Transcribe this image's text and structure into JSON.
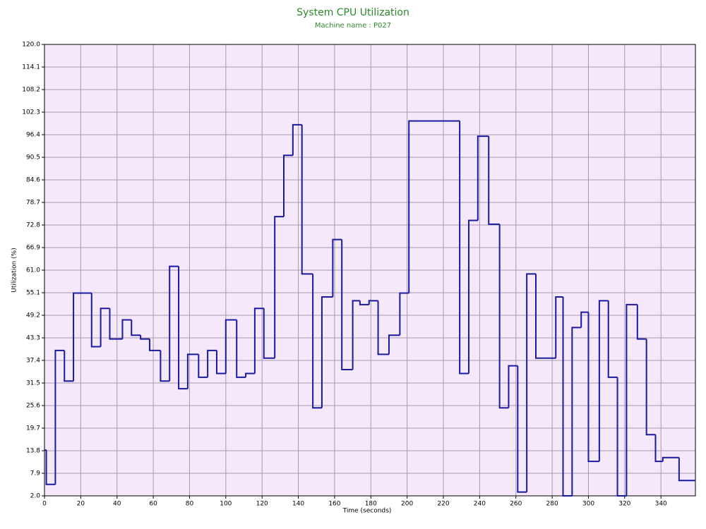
{
  "chart_data": {
    "type": "step",
    "title": "System CPU Utilization",
    "subtitle": "Machine name : P027",
    "x_label": "Time (seconds)",
    "y_label": "Utilization (%)",
    "x": [
      0,
      1,
      6,
      11,
      16,
      26,
      31,
      36,
      43,
      48,
      53,
      58,
      64,
      69,
      74,
      79,
      85,
      90,
      95,
      100,
      106,
      111,
      116,
      121,
      127,
      132,
      137,
      142,
      148,
      153,
      159,
      164,
      170,
      174,
      179,
      184,
      190,
      196,
      201,
      229,
      234,
      239,
      245,
      251,
      256,
      261,
      266,
      271,
      282,
      286,
      291,
      296,
      300,
      306,
      311,
      316,
      321,
      327,
      332,
      337,
      341,
      350,
      359
    ],
    "series": [
      {
        "name": "CPU",
        "color": "#1a1aa0",
        "values": [
          14,
          5,
          40,
          32,
          55,
          41,
          51,
          43,
          48,
          44,
          43,
          40,
          32,
          62,
          30,
          39,
          33,
          40,
          34,
          48,
          33,
          34,
          51,
          38,
          75,
          91,
          99,
          60,
          25,
          54,
          69,
          35,
          53,
          52,
          53,
          39,
          44,
          55,
          100,
          34,
          74,
          96,
          73,
          25,
          36,
          3,
          60,
          38,
          54,
          2,
          46,
          50,
          11,
          53,
          33,
          2,
          52,
          43,
          18,
          11,
          12,
          6,
          6
        ]
      }
    ],
    "xlim": [
      0,
      359
    ],
    "xticks": [
      0,
      20,
      40,
      60,
      80,
      100,
      120,
      140,
      160,
      180,
      200,
      220,
      240,
      260,
      280,
      300,
      320,
      340
    ],
    "ylim": [
      2,
      120
    ],
    "yticks": [
      {
        "value": 2,
        "label": "2.0"
      },
      7.9,
      13.8,
      19.7,
      25.6,
      31.5,
      37.4,
      43.3,
      49.2,
      55.1,
      {
        "value": 61,
        "label": "61.0"
      },
      66.9,
      72.8,
      78.7,
      84.6,
      90.5,
      96.4,
      102.3,
      108.2,
      114.1,
      {
        "value": 120,
        "label": "120.0"
      }
    ],
    "grid": true,
    "background": "#f5e8fb",
    "title_color": "#2a8a2a"
  }
}
